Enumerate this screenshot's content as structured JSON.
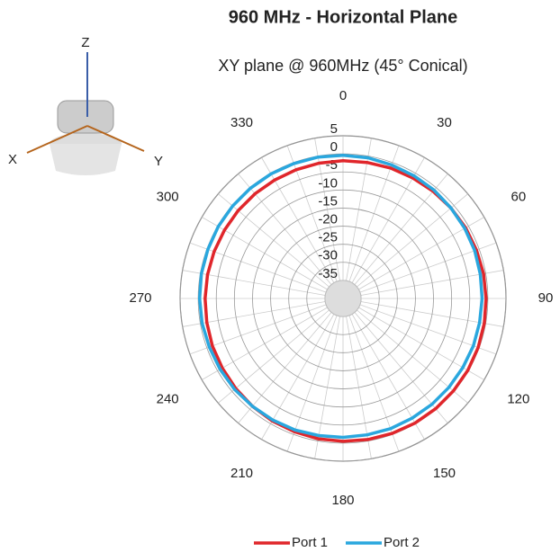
{
  "chart_data": {
    "type": "polar",
    "title": "960 MHz - Horizontal Plane",
    "subtitle": "XY plane @ 960MHz (45° Conical)",
    "icon_axis_labels": [
      "Z",
      "X",
      "Y"
    ],
    "x": [
      0,
      10,
      20,
      30,
      40,
      50,
      60,
      70,
      80,
      90,
      100,
      110,
      120,
      130,
      140,
      150,
      160,
      170,
      180,
      190,
      200,
      210,
      220,
      230,
      240,
      250,
      260,
      270,
      280,
      290,
      300,
      310,
      320,
      330,
      340,
      350
    ],
    "xticks": [
      0,
      30,
      60,
      90,
      120,
      150,
      180,
      210,
      240,
      270,
      300,
      330
    ],
    "ylim": [
      -40,
      5
    ],
    "yticks": [
      5,
      0,
      -5,
      -10,
      -15,
      -20,
      -25,
      -30,
      -35
    ],
    "grid": true,
    "legend": "bottom",
    "series": [
      {
        "name": "Port 1",
        "color": "#e0262b",
        "values": [
          -1.9,
          -1.8,
          -1.6,
          -1.5,
          -1.3,
          -1.1,
          -0.9,
          -0.8,
          -0.6,
          -0.5,
          -0.4,
          -0.3,
          -0.2,
          -0.2,
          -0.2,
          -0.2,
          -0.3,
          -0.4,
          -0.5,
          -0.6,
          -0.8,
          -0.9,
          -1.1,
          -1.3,
          -1.5,
          -1.6,
          -1.8,
          -1.9,
          -2.0,
          -2.1,
          -2.2,
          -2.2,
          -2.2,
          -2.2,
          -2.1,
          -2.0
        ]
      },
      {
        "name": "Port 2",
        "color": "#2aa7de",
        "values": [
          -0.4,
          -0.5,
          -0.7,
          -0.8,
          -0.9,
          -1.1,
          -1.2,
          -1.3,
          -1.5,
          -1.6,
          -1.7,
          -1.7,
          -1.8,
          -1.8,
          -1.8,
          -1.8,
          -1.7,
          -1.7,
          -1.6,
          -1.5,
          -1.3,
          -1.2,
          -1.1,
          -0.9,
          -0.8,
          -0.7,
          -0.5,
          -0.4,
          -0.3,
          -0.3,
          -0.2,
          -0.2,
          -0.2,
          -0.2,
          -0.3,
          -0.3
        ]
      }
    ]
  }
}
